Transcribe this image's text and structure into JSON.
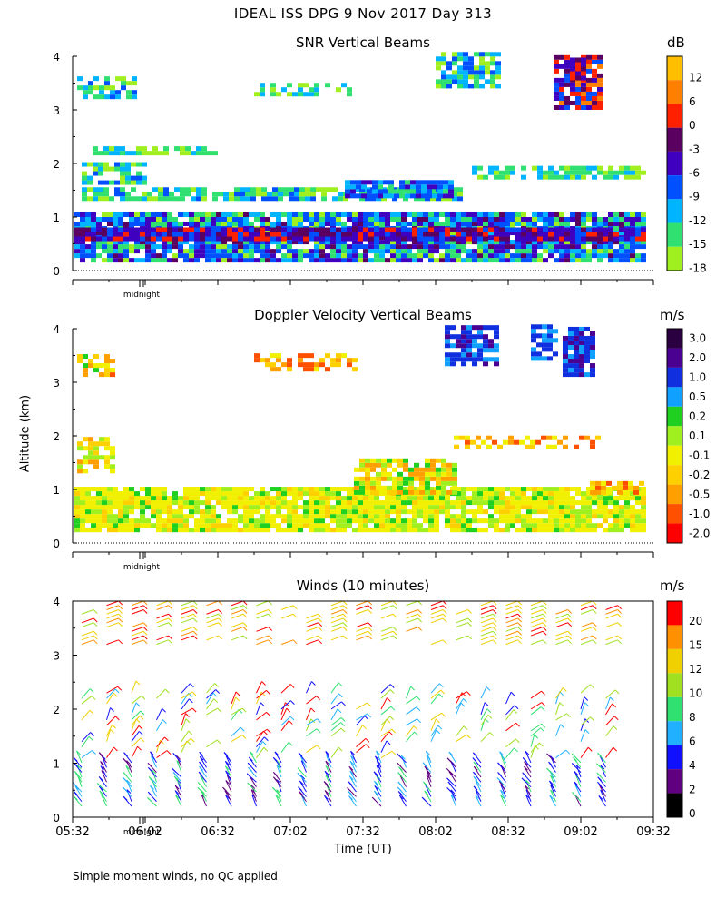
{
  "header": {
    "title": "IDEAL ISS DPG   9 Nov 2017 Day 313"
  },
  "y_axis_label": "Altitude (km)",
  "x_axis_label": "Time (UT)",
  "footnote": "Simple moment winds, no QC applied",
  "midnight_label": "midnight",
  "chart_data": [
    {
      "type": "heatmap",
      "title": "SNR Vertical Beams",
      "units": "dB",
      "ylim": [
        0,
        4
      ],
      "yticks": [
        "0",
        "1",
        "2",
        "3",
        "4"
      ],
      "colorbar_labels": [
        "12",
        "6",
        "0",
        "-3",
        "-6",
        "-9",
        "-12",
        "-15",
        "-18"
      ],
      "colorbar_colors": [
        "#ffbf00",
        "#ff8000",
        "#ff2000",
        "#5a0060",
        "#4000c0",
        "#0050ff",
        "#00b4ff",
        "#30e070",
        "#a0f020"
      ]
    },
    {
      "type": "heatmap",
      "title": "Doppler Velocity Vertical Beams",
      "units": "m/s",
      "ylim": [
        0,
        4
      ],
      "yticks": [
        "0",
        "1",
        "2",
        "3",
        "4"
      ],
      "colorbar_labels": [
        "3.0",
        "2.0",
        "1.0",
        "0.5",
        "0.2",
        "0.1",
        "-0.1",
        "-0.2",
        "-0.5",
        "-1.0",
        "-2.0"
      ],
      "colorbar_colors": [
        "#2a0040",
        "#4a0090",
        "#1030e0",
        "#10a0ff",
        "#20d020",
        "#a0f020",
        "#f0f000",
        "#ffd000",
        "#ffa000",
        "#ff5000",
        "#ff0000"
      ]
    },
    {
      "type": "scatter",
      "title": "Winds (10 minutes)",
      "units": "m/s",
      "ylim": [
        0,
        4
      ],
      "yticks": [
        "0",
        "1",
        "2",
        "3",
        "4"
      ],
      "x_ticks": [
        "05:32",
        "06:02",
        "06:32",
        "07:02",
        "07:32",
        "08:02",
        "08:32",
        "09:02",
        "09:32"
      ],
      "colorbar_labels": [
        "20",
        "15",
        "12",
        "10",
        "8",
        "6",
        "4",
        "2",
        "0"
      ],
      "colorbar_colors": [
        "#ff0000",
        "#ff9000",
        "#f0d000",
        "#a0e020",
        "#30e070",
        "#20b0ff",
        "#1010ff",
        "#600080",
        "#000000"
      ]
    }
  ]
}
